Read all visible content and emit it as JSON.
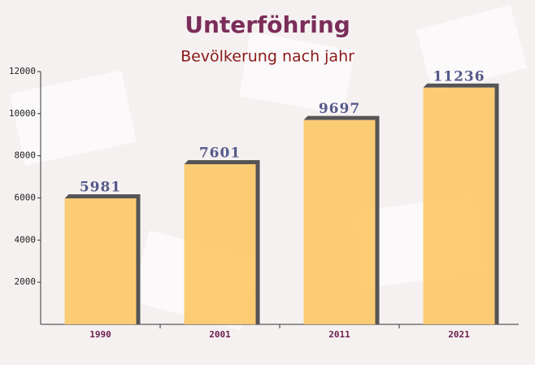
{
  "chart_data": {
    "type": "bar",
    "title": "Unterföhring",
    "subtitle": "Bevölkerung nach jahr",
    "categories": [
      "1990",
      "2001",
      "2011",
      "2021"
    ],
    "values": [
      5981,
      7601,
      9697,
      11236
    ],
    "color": "#fcc866",
    "ylim": [
      0,
      12000
    ],
    "yticks": [
      2000,
      4000,
      6000,
      8000,
      10000,
      12000
    ]
  }
}
